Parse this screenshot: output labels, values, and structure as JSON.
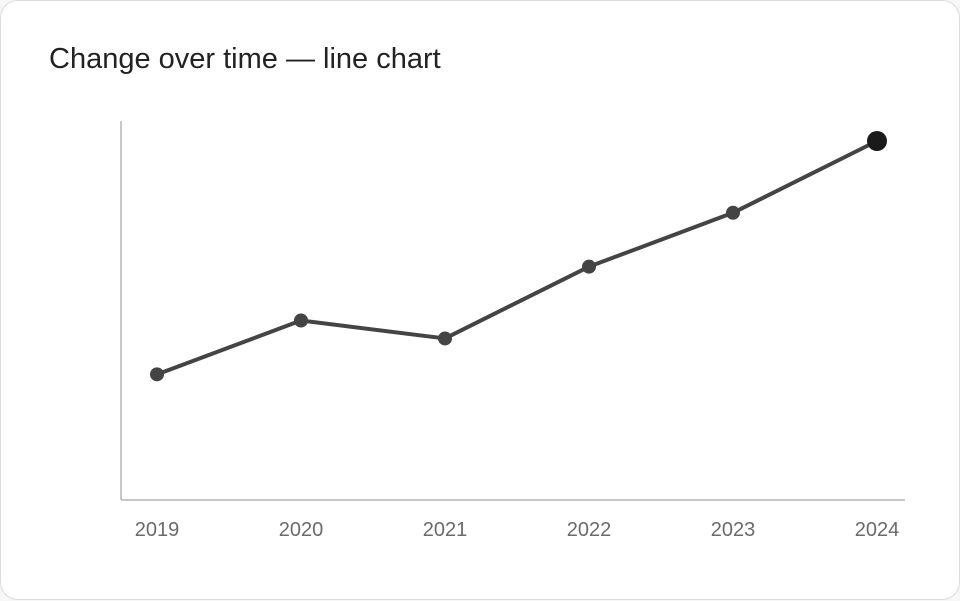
{
  "chart_data": {
    "type": "line",
    "title": "Change over time — line chart",
    "xlabel": "",
    "ylabel": "",
    "categories": [
      "2019",
      "2020",
      "2021",
      "2022",
      "2023",
      "2024"
    ],
    "values": [
      30,
      45,
      40,
      60,
      75,
      95
    ],
    "ylim": [
      -5,
      95
    ],
    "grid": false,
    "highlight_last_point": true,
    "colors": {
      "line": "#444444",
      "point": "#444444",
      "highlight_point": "#1a1a1a",
      "axis": "#b5b5b5"
    }
  }
}
